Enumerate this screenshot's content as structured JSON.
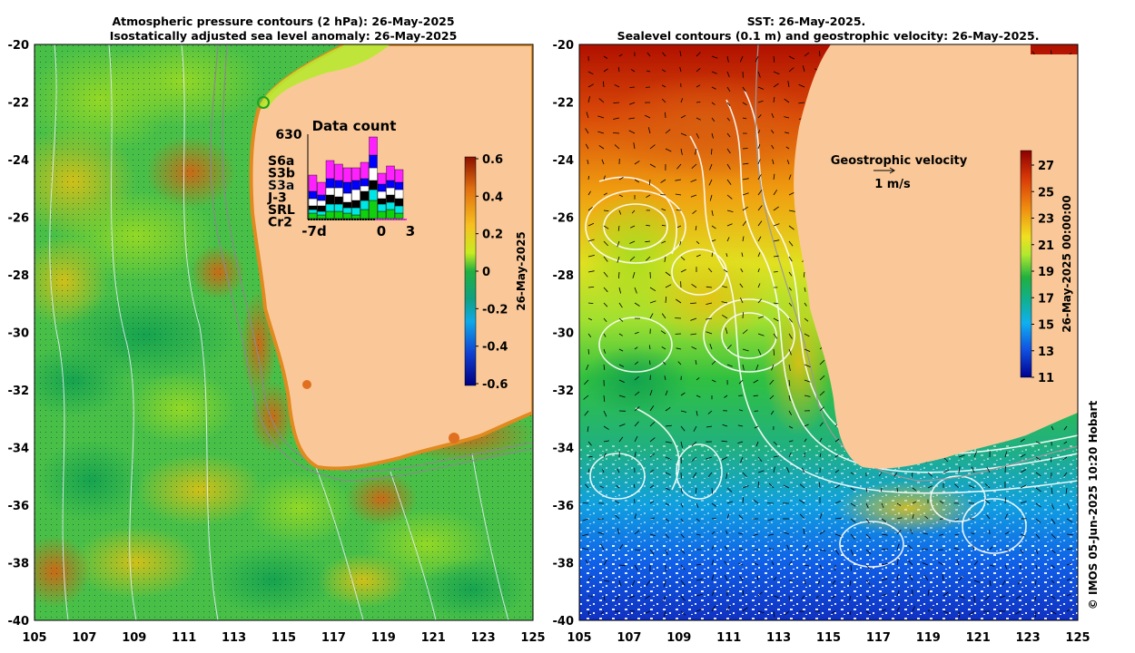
{
  "left_panel": {
    "title_line1": "Atmospheric pressure contours (2 hPa): 26-May-2025",
    "title_line2": "Isostatically adjusted sea level anomaly: 26-May-2025",
    "colorbar": {
      "date_label": "26-May-2025",
      "ticks": [
        "0.6",
        "0.4",
        "0.2",
        "0",
        "-0.2",
        "-0.4",
        "-0.6"
      ],
      "values": [
        0.6,
        0.4,
        0.2,
        0,
        -0.2,
        -0.4,
        -0.6
      ]
    },
    "inset": {
      "title": "Data count",
      "max_label": "630",
      "x_left": "-7d",
      "x_mid": "0",
      "x_right": "3",
      "missions": [
        {
          "label": "S6a",
          "color": "#ff20ff"
        },
        {
          "label": "S3b",
          "color": "#0000ff"
        },
        {
          "label": "S3a",
          "color": "#ffffff"
        },
        {
          "label": "J-3",
          "color": "#000000"
        },
        {
          "label": "SRL",
          "color": "#00e5e5"
        },
        {
          "label": "Cr2",
          "color": "#10d010"
        }
      ]
    }
  },
  "right_panel": {
    "title_line1": "SST: 26-May-2025.",
    "title_line2": "Sealevel contours (0.1 m) and geostrophic velocity: 26-May-2025.",
    "velocity_label": "Geostrophic velocity",
    "velocity_scale": "1 m/s",
    "colorbar": {
      "date_label": "26-May-2025 00:00:00",
      "ticks": [
        "27",
        "25",
        "23",
        "21",
        "19",
        "17",
        "15",
        "13",
        "11"
      ],
      "values": [
        27,
        25,
        23,
        21,
        19,
        17,
        15,
        13,
        11
      ]
    }
  },
  "axes": {
    "lat_ticks": [
      "-20",
      "-22",
      "-24",
      "-26",
      "-28",
      "-30",
      "-32",
      "-34",
      "-36",
      "-38",
      "-40"
    ],
    "lon_ticks": [
      "105",
      "107",
      "109",
      "111",
      "113",
      "115",
      "117",
      "119",
      "121",
      "123",
      "125"
    ]
  },
  "credit": "© IMOS 05-Jun-2025 10:20 Hobart"
}
